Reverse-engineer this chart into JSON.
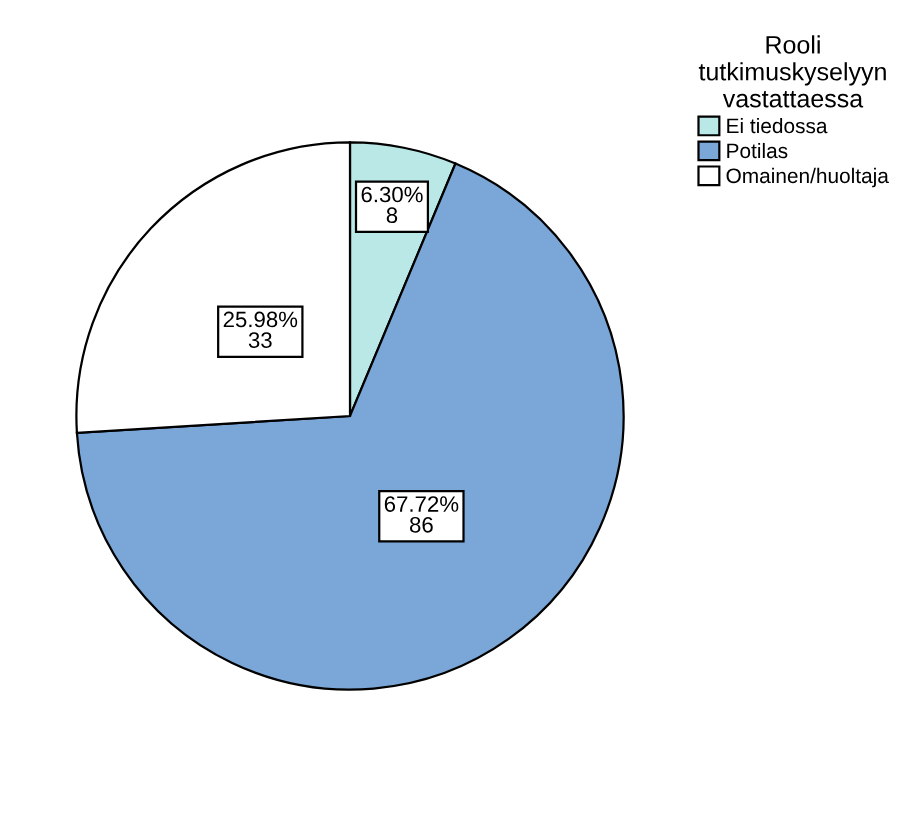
{
  "chart_data": {
    "type": "pie",
    "legend_title": "Rooli\ntutkimuskyselyyn\nvastattaessa",
    "legend": "right",
    "categories": [
      "Ei tiedossa",
      "Potilas",
      "Omainen/huoltaja"
    ],
    "values": [
      8,
      86,
      33
    ],
    "colors": [
      "#b9e8e6",
      "#7aa7d7",
      "#ffffff"
    ],
    "value_labels": [
      "6.30%\n8",
      "67.72%\n86",
      "25.98%\n33"
    ]
  }
}
